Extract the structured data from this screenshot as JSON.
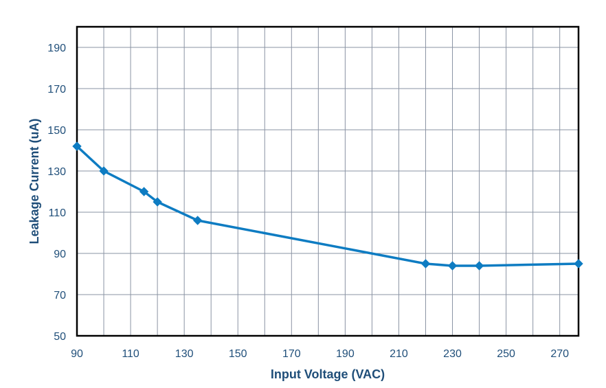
{
  "chart_data": {
    "type": "line",
    "title": "",
    "xlabel": "Input Voltage (VAC)",
    "ylabel": "Leakage Current (uA)",
    "xlim": [
      90,
      277
    ],
    "ylim": [
      50,
      200
    ],
    "x_ticks": [
      90,
      110,
      130,
      150,
      170,
      190,
      210,
      230,
      250,
      270
    ],
    "y_ticks": [
      50,
      70,
      90,
      110,
      130,
      150,
      170,
      190
    ],
    "x_grid_step": 10,
    "y_grid_step": 20,
    "grid": true,
    "legend": "none",
    "colors": {
      "series": "#0e7cc2",
      "grid": "#8a93a3",
      "frame": "#000000",
      "text": "#1f4e79"
    },
    "series": [
      {
        "x": [
          90,
          100,
          115,
          120,
          135,
          220,
          230,
          240,
          277
        ],
        "values": [
          142,
          130,
          120,
          115,
          106,
          85,
          84,
          84,
          85
        ],
        "marker": "diamond"
      }
    ]
  }
}
